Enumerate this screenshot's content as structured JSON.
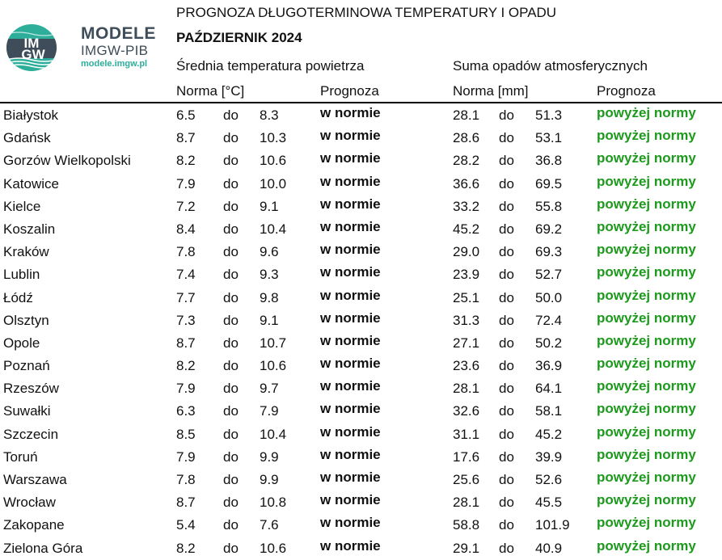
{
  "logo": {
    "emblem_text": [
      "IM",
      "GW"
    ],
    "title": "MODELE",
    "subtitle": "IMGW-PIB",
    "url": "modele.imgw.pl"
  },
  "header": {
    "title": "PROGNOZA DŁUGOTERMINOWA TEMPERATURY I OPADU",
    "subtitle": "PAŹDZIERNIK 2024",
    "temp_group": "Średnia temperatura powietrza",
    "prec_group": "Suma opadów atmosferycznych",
    "temp_norm": "Norma [°C]",
    "temp_forecast": "Prognoza",
    "prec_norm": "Norma [mm]",
    "prec_forecast": "Prognoza"
  },
  "colors": {
    "forecast_green": "#1c9a1c",
    "brand_grey": "#3e4d59",
    "brand_teal": "#2cae9a"
  },
  "rows": [
    {
      "city": "Białystok",
      "tmin": "6.5",
      "do1": "do",
      "tmax": "8.3",
      "tfc": "w normie",
      "pmin": "28.1",
      "do2": "do",
      "pmax": "51.3",
      "pfc": "powyżej normy"
    },
    {
      "city": "Gdańsk",
      "tmin": "8.7",
      "do1": "do",
      "tmax": "10.3",
      "tfc": "w normie",
      "pmin": "28.6",
      "do2": "do",
      "pmax": "53.1",
      "pfc": "powyżej normy"
    },
    {
      "city": "Gorzów Wielkopolski",
      "tmin": "8.2",
      "do1": "do",
      "tmax": "10.6",
      "tfc": "w normie",
      "pmin": "28.2",
      "do2": "do",
      "pmax": "36.8",
      "pfc": "powyżej normy"
    },
    {
      "city": "Katowice",
      "tmin": "7.9",
      "do1": "do",
      "tmax": "10.0",
      "tfc": "w normie",
      "pmin": "36.6",
      "do2": "do",
      "pmax": "69.5",
      "pfc": "powyżej normy"
    },
    {
      "city": "Kielce",
      "tmin": "7.2",
      "do1": "do",
      "tmax": "9.1",
      "tfc": "w normie",
      "pmin": "33.2",
      "do2": "do",
      "pmax": "55.8",
      "pfc": "powyżej normy"
    },
    {
      "city": "Koszalin",
      "tmin": "8.4",
      "do1": "do",
      "tmax": "10.4",
      "tfc": "w normie",
      "pmin": "45.2",
      "do2": "do",
      "pmax": "69.2",
      "pfc": "powyżej normy"
    },
    {
      "city": "Kraków",
      "tmin": "7.8",
      "do1": "do",
      "tmax": "9.6",
      "tfc": "w normie",
      "pmin": "29.0",
      "do2": "do",
      "pmax": "69.3",
      "pfc": "powyżej normy"
    },
    {
      "city": "Lublin",
      "tmin": "7.4",
      "do1": "do",
      "tmax": "9.3",
      "tfc": "w normie",
      "pmin": "23.9",
      "do2": "do",
      "pmax": "52.7",
      "pfc": "powyżej normy"
    },
    {
      "city": "Łódź",
      "tmin": "7.7",
      "do1": "do",
      "tmax": "9.8",
      "tfc": "w normie",
      "pmin": "25.1",
      "do2": "do",
      "pmax": "50.0",
      "pfc": "powyżej normy"
    },
    {
      "city": "Olsztyn",
      "tmin": "7.3",
      "do1": "do",
      "tmax": "9.1",
      "tfc": "w normie",
      "pmin": "31.3",
      "do2": "do",
      "pmax": "72.4",
      "pfc": "powyżej normy"
    },
    {
      "city": "Opole",
      "tmin": "8.7",
      "do1": "do",
      "tmax": "10.7",
      "tfc": "w normie",
      "pmin": "27.1",
      "do2": "do",
      "pmax": "50.2",
      "pfc": "powyżej normy"
    },
    {
      "city": "Poznań",
      "tmin": "8.2",
      "do1": "do",
      "tmax": "10.6",
      "tfc": "w normie",
      "pmin": "23.6",
      "do2": "do",
      "pmax": "36.9",
      "pfc": "powyżej normy"
    },
    {
      "city": "Rzeszów",
      "tmin": "7.9",
      "do1": "do",
      "tmax": "9.7",
      "tfc": "w normie",
      "pmin": "28.1",
      "do2": "do",
      "pmax": "64.1",
      "pfc": "powyżej normy"
    },
    {
      "city": "Suwałki",
      "tmin": "6.3",
      "do1": "do",
      "tmax": "7.9",
      "tfc": "w normie",
      "pmin": "32.6",
      "do2": "do",
      "pmax": "58.1",
      "pfc": "powyżej normy"
    },
    {
      "city": "Szczecin",
      "tmin": "8.5",
      "do1": "do",
      "tmax": "10.4",
      "tfc": "w normie",
      "pmin": "31.1",
      "do2": "do",
      "pmax": "45.2",
      "pfc": "powyżej normy"
    },
    {
      "city": "Toruń",
      "tmin": "7.9",
      "do1": "do",
      "tmax": "9.9",
      "tfc": "w normie",
      "pmin": "17.6",
      "do2": "do",
      "pmax": "39.9",
      "pfc": "powyżej normy"
    },
    {
      "city": "Warszawa",
      "tmin": "7.8",
      "do1": "do",
      "tmax": "9.9",
      "tfc": "w normie",
      "pmin": "25.6",
      "do2": "do",
      "pmax": "52.6",
      "pfc": "powyżej normy"
    },
    {
      "city": "Wrocław",
      "tmin": "8.7",
      "do1": "do",
      "tmax": "10.8",
      "tfc": "w normie",
      "pmin": "28.1",
      "do2": "do",
      "pmax": "45.5",
      "pfc": "powyżej normy"
    },
    {
      "city": "Zakopane",
      "tmin": "5.4",
      "do1": "do",
      "tmax": "7.6",
      "tfc": "w normie",
      "pmin": "58.8",
      "do2": "do",
      "pmax": "101.9",
      "pfc": "powyżej normy"
    },
    {
      "city": "Zielona Góra",
      "tmin": "8.2",
      "do1": "do",
      "tmax": "10.6",
      "tfc": "w normie",
      "pmin": "29.1",
      "do2": "do",
      "pmax": "40.9",
      "pfc": "powyżej normy"
    }
  ]
}
